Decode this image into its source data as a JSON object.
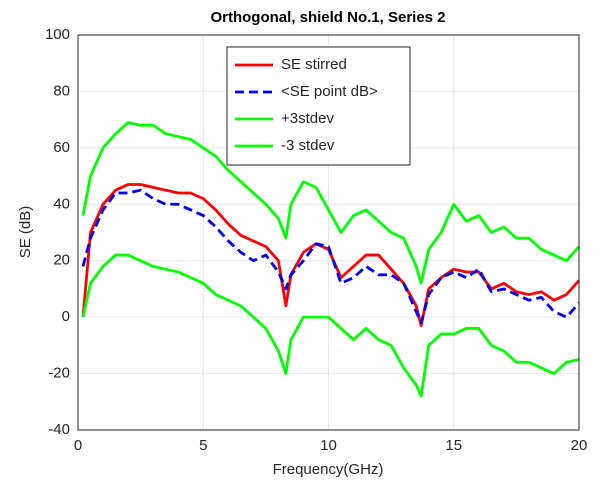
{
  "chart_data": {
    "type": "line",
    "title": "Orthogonal, shield No.1, Series 2",
    "x_label": "Frequency(GHz)",
    "y_label": "SE (dB)",
    "x": [
      0.2,
      0.5,
      1,
      1.5,
      2,
      2.5,
      3,
      3.5,
      4,
      4.5,
      5,
      5.5,
      6,
      6.5,
      7,
      7.5,
      8,
      8.3,
      8.5,
      9,
      9.5,
      10,
      10.5,
      11,
      11.5,
      12,
      12.5,
      13,
      13.5,
      13.7,
      14,
      14.5,
      15,
      15.5,
      16,
      16.5,
      17,
      17.5,
      18,
      18.5,
      19,
      19.5,
      20
    ],
    "series": [
      {
        "name": "SE stirred",
        "color": "#ff0000",
        "dash": false,
        "values": [
          0,
          30,
          40,
          45,
          47,
          47,
          46,
          45,
          44,
          44,
          42,
          38,
          33,
          29,
          27,
          25,
          20,
          4,
          15,
          23,
          26,
          24,
          14,
          18,
          22,
          22,
          17,
          12,
          4,
          -3,
          10,
          14,
          17,
          16,
          16,
          10,
          12,
          9,
          8,
          9,
          6,
          8,
          13
        ]
      },
      {
        "name": "<SE point dB>",
        "color": "#0000ff",
        "dash": true,
        "values": [
          18,
          28,
          38,
          44,
          44,
          45,
          42,
          40,
          40,
          38,
          36,
          32,
          27,
          23,
          20,
          22,
          16,
          10,
          15,
          20,
          26,
          25,
          12,
          14,
          18,
          15,
          15,
          12,
          2,
          -2,
          8,
          14,
          16,
          14,
          17,
          9,
          10,
          8,
          6,
          7,
          2,
          0,
          5
        ]
      },
      {
        "name": "+3stdev",
        "color": "#00ff00",
        "dash": false,
        "values": [
          36,
          50,
          60,
          65,
          69,
          68,
          68,
          65,
          64,
          63,
          60,
          57,
          52,
          48,
          44,
          40,
          35,
          28,
          40,
          48,
          46,
          38,
          30,
          36,
          38,
          34,
          30,
          28,
          18,
          12,
          24,
          30,
          40,
          34,
          36,
          30,
          32,
          28,
          28,
          24,
          22,
          20,
          25
        ]
      },
      {
        "name": "-3 stdev",
        "color": "#00ff00",
        "dash": false,
        "values": [
          0,
          12,
          18,
          22,
          22,
          20,
          18,
          17,
          16,
          14,
          12,
          8,
          6,
          4,
          0,
          -4,
          -12,
          -20,
          -8,
          0,
          0,
          0,
          -4,
          -8,
          -4,
          -8,
          -10,
          -18,
          -24,
          -28,
          -10,
          -6,
          -6,
          -4,
          -4,
          -10,
          -12,
          -16,
          -16,
          -18,
          -20,
          -16,
          -15
        ]
      }
    ],
    "xlim": [
      0,
      20
    ],
    "xticks": [
      0,
      5,
      10,
      15,
      20
    ],
    "ylim": [
      -40,
      100
    ],
    "yticks": [
      -40,
      -20,
      0,
      20,
      40,
      60,
      80,
      100
    ],
    "grid": true,
    "legend": "north"
  }
}
